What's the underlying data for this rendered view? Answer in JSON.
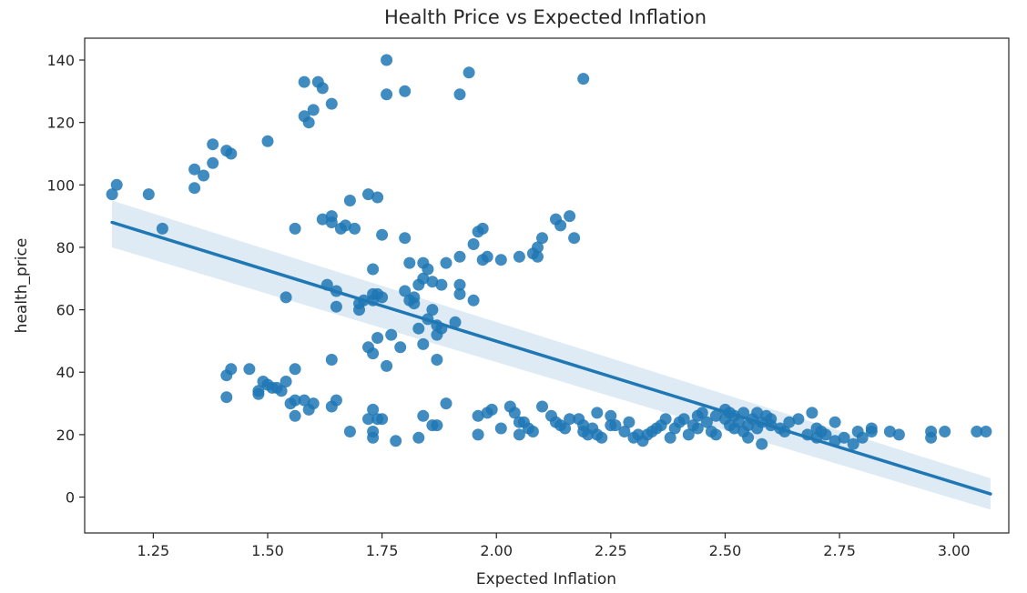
{
  "chart_data": {
    "type": "scatter",
    "title": "Health Price vs Expected Inflation",
    "xlabel": "Expected Inflation",
    "ylabel": "health_price",
    "xlim": [
      1.1,
      3.12
    ],
    "ylim": [
      -11.5,
      147
    ],
    "x_ticks": [
      "1.25",
      "1.50",
      "1.75",
      "2.00",
      "2.25",
      "2.50",
      "2.75",
      "3.00"
    ],
    "y_ticks": [
      "0",
      "20",
      "40",
      "60",
      "80",
      "100",
      "120",
      "140"
    ],
    "grid": false,
    "legend": "none",
    "point_color": "#1f77b4",
    "regression": {
      "x": [
        1.16,
        3.08
      ],
      "y": [
        88,
        1
      ],
      "ci_lower": [
        80,
        -4
      ],
      "ci_upper": [
        95,
        6
      ]
    },
    "series": [
      {
        "points": [
          [
            1.16,
            97
          ],
          [
            1.17,
            100
          ],
          [
            1.24,
            97
          ],
          [
            1.27,
            86
          ],
          [
            1.34,
            99
          ],
          [
            1.34,
            105
          ],
          [
            1.36,
            103
          ],
          [
            1.38,
            107
          ],
          [
            1.38,
            113
          ],
          [
            1.41,
            111
          ],
          [
            1.42,
            110
          ],
          [
            1.5,
            114
          ],
          [
            1.41,
            39
          ],
          [
            1.42,
            41
          ],
          [
            1.41,
            32
          ],
          [
            1.46,
            41
          ],
          [
            1.48,
            34
          ],
          [
            1.48,
            33
          ],
          [
            1.49,
            37
          ],
          [
            1.5,
            36
          ],
          [
            1.51,
            35
          ],
          [
            1.52,
            35
          ],
          [
            1.53,
            34
          ],
          [
            1.54,
            64
          ],
          [
            1.54,
            37
          ],
          [
            1.55,
            30
          ],
          [
            1.56,
            41
          ],
          [
            1.56,
            31
          ],
          [
            1.56,
            26
          ],
          [
            1.56,
            86
          ],
          [
            1.58,
            31
          ],
          [
            1.59,
            28
          ],
          [
            1.6,
            30
          ],
          [
            1.58,
            133
          ],
          [
            1.58,
            122
          ],
          [
            1.59,
            120
          ],
          [
            1.6,
            124
          ],
          [
            1.61,
            133
          ],
          [
            1.62,
            131
          ],
          [
            1.64,
            126
          ],
          [
            1.62,
            89
          ],
          [
            1.63,
            68
          ],
          [
            1.64,
            88
          ],
          [
            1.64,
            90
          ],
          [
            1.65,
            66
          ],
          [
            1.65,
            61
          ],
          [
            1.64,
            44
          ],
          [
            1.65,
            31
          ],
          [
            1.64,
            29
          ],
          [
            1.66,
            86
          ],
          [
            1.67,
            87
          ],
          [
            1.68,
            95
          ],
          [
            1.69,
            86
          ],
          [
            1.7,
            60
          ],
          [
            1.7,
            62
          ],
          [
            1.71,
            63
          ],
          [
            1.72,
            97
          ],
          [
            1.73,
            65
          ],
          [
            1.73,
            63
          ],
          [
            1.74,
            96
          ],
          [
            1.74,
            65
          ],
          [
            1.75,
            64
          ],
          [
            1.75,
            84
          ],
          [
            1.72,
            48
          ],
          [
            1.73,
            46
          ],
          [
            1.73,
            73
          ],
          [
            1.74,
            51
          ],
          [
            1.76,
            42
          ],
          [
            1.76,
            140
          ],
          [
            1.76,
            129
          ],
          [
            1.68,
            21
          ],
          [
            1.72,
            25
          ],
          [
            1.73,
            21
          ],
          [
            1.73,
            19
          ],
          [
            1.73,
            28
          ],
          [
            1.74,
            25
          ],
          [
            1.75,
            25
          ],
          [
            1.78,
            18
          ],
          [
            1.77,
            52
          ],
          [
            1.79,
            48
          ],
          [
            1.8,
            130
          ],
          [
            1.8,
            83
          ],
          [
            1.8,
            66
          ],
          [
            1.81,
            63
          ],
          [
            1.81,
            75
          ],
          [
            1.82,
            64
          ],
          [
            1.82,
            62
          ],
          [
            1.83,
            68
          ],
          [
            1.83,
            54
          ],
          [
            1.84,
            70
          ],
          [
            1.84,
            75
          ],
          [
            1.84,
            49
          ],
          [
            1.85,
            57
          ],
          [
            1.85,
            73
          ],
          [
            1.86,
            69
          ],
          [
            1.86,
            60
          ],
          [
            1.87,
            55
          ],
          [
            1.87,
            52
          ],
          [
            1.87,
            44
          ],
          [
            1.88,
            54
          ],
          [
            1.88,
            68
          ],
          [
            1.89,
            75
          ],
          [
            1.91,
            56
          ],
          [
            1.92,
            68
          ],
          [
            1.92,
            65
          ],
          [
            1.83,
            19
          ],
          [
            1.84,
            26
          ],
          [
            1.86,
            23
          ],
          [
            1.87,
            23
          ],
          [
            1.89,
            30
          ],
          [
            1.92,
            129
          ],
          [
            1.92,
            77
          ],
          [
            1.94,
            136
          ],
          [
            1.95,
            63
          ],
          [
            1.95,
            81
          ],
          [
            1.96,
            85
          ],
          [
            1.97,
            86
          ],
          [
            1.97,
            76
          ],
          [
            1.98,
            77
          ],
          [
            2.01,
            76
          ],
          [
            1.96,
            20
          ],
          [
            1.96,
            26
          ],
          [
            1.98,
            27
          ],
          [
            1.99,
            28
          ],
          [
            2.01,
            22
          ],
          [
            2.03,
            29
          ],
          [
            2.04,
            27
          ],
          [
            2.05,
            24
          ],
          [
            2.05,
            20
          ],
          [
            2.06,
            24
          ],
          [
            2.05,
            77
          ],
          [
            2.08,
            78
          ],
          [
            2.09,
            80
          ],
          [
            2.09,
            77
          ],
          [
            2.1,
            83
          ],
          [
            2.13,
            89
          ],
          [
            2.14,
            87
          ],
          [
            2.16,
            90
          ],
          [
            2.17,
            83
          ],
          [
            2.19,
            134
          ],
          [
            2.07,
            22
          ],
          [
            2.08,
            21
          ],
          [
            2.1,
            29
          ],
          [
            2.12,
            26
          ],
          [
            2.13,
            24
          ],
          [
            2.14,
            23
          ],
          [
            2.15,
            22
          ],
          [
            2.16,
            25
          ],
          [
            2.18,
            25
          ],
          [
            2.19,
            23
          ],
          [
            2.19,
            21
          ],
          [
            2.2,
            20
          ],
          [
            2.21,
            22
          ],
          [
            2.22,
            20
          ],
          [
            2.22,
            27
          ],
          [
            2.23,
            19
          ],
          [
            2.25,
            26
          ],
          [
            2.25,
            23
          ],
          [
            2.26,
            23
          ],
          [
            2.28,
            21
          ],
          [
            2.29,
            24
          ],
          [
            2.3,
            19
          ],
          [
            2.31,
            20
          ],
          [
            2.32,
            18
          ],
          [
            2.33,
            20
          ],
          [
            2.34,
            21
          ],
          [
            2.35,
            22
          ],
          [
            2.36,
            23
          ],
          [
            2.37,
            25
          ],
          [
            2.38,
            19
          ],
          [
            2.39,
            22
          ],
          [
            2.4,
            24
          ],
          [
            2.41,
            25
          ],
          [
            2.42,
            20
          ],
          [
            2.43,
            23
          ],
          [
            2.44,
            26
          ],
          [
            2.44,
            22
          ],
          [
            2.45,
            27
          ],
          [
            2.46,
            24
          ],
          [
            2.47,
            21
          ],
          [
            2.48,
            20
          ],
          [
            2.48,
            26
          ],
          [
            2.5,
            28
          ],
          [
            2.5,
            25
          ],
          [
            2.51,
            23
          ],
          [
            2.51,
            27
          ],
          [
            2.52,
            26
          ],
          [
            2.52,
            22
          ],
          [
            2.53,
            24
          ],
          [
            2.54,
            27
          ],
          [
            2.54,
            21
          ],
          [
            2.55,
            23
          ],
          [
            2.55,
            19
          ],
          [
            2.56,
            25
          ],
          [
            2.57,
            27
          ],
          [
            2.57,
            22
          ],
          [
            2.58,
            24
          ],
          [
            2.58,
            17
          ],
          [
            2.59,
            26
          ],
          [
            2.6,
            25
          ],
          [
            2.6,
            23
          ],
          [
            2.62,
            22
          ],
          [
            2.63,
            21
          ],
          [
            2.64,
            24
          ],
          [
            2.66,
            25
          ],
          [
            2.68,
            20
          ],
          [
            2.69,
            27
          ],
          [
            2.7,
            22
          ],
          [
            2.7,
            19
          ],
          [
            2.71,
            21
          ],
          [
            2.72,
            20
          ],
          [
            2.74,
            24
          ],
          [
            2.74,
            18
          ],
          [
            2.76,
            19
          ],
          [
            2.78,
            17
          ],
          [
            2.79,
            21
          ],
          [
            2.8,
            19
          ],
          [
            2.82,
            21
          ],
          [
            2.82,
            22
          ],
          [
            2.86,
            21
          ],
          [
            2.88,
            20
          ],
          [
            2.95,
            21
          ],
          [
            2.95,
            19
          ],
          [
            2.98,
            21
          ],
          [
            3.05,
            21
          ],
          [
            3.07,
            21
          ]
        ]
      }
    ]
  }
}
